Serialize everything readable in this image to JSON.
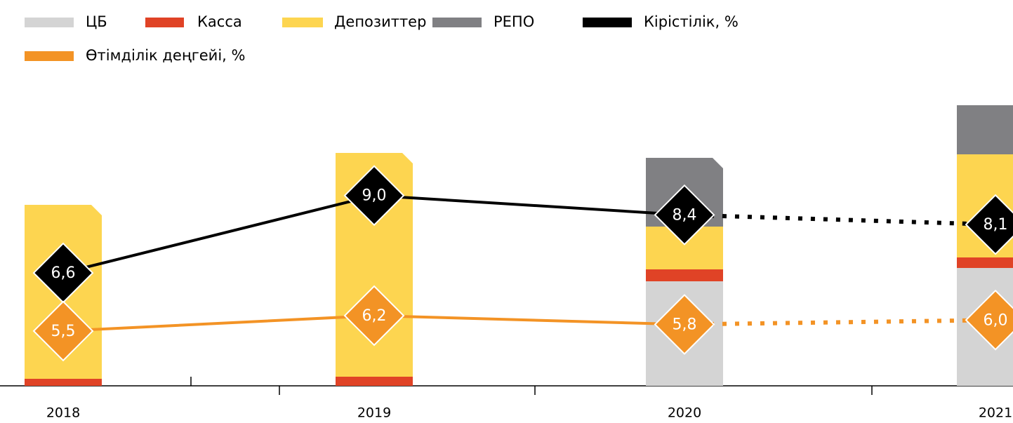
{
  "chart_data": {
    "type": "bar",
    "categories": [
      "2018",
      "2019",
      "2020",
      "2021"
    ],
    "ylim": [
      0,
      400
    ],
    "dotted_from": 2,
    "series": [
      {
        "name": "ЦБ",
        "color": "#d4d4d4",
        "values": [
          null,
          null,
          149,
          168
        ]
      },
      {
        "name": "Касса",
        "color": "#e04326",
        "values": [
          10,
          13,
          17,
          15
        ]
      },
      {
        "name": "Депозиттер",
        "color": "#fdd550",
        "values": [
          248,
          319,
          61,
          147
        ]
      },
      {
        "name": "РЕПО",
        "color": "#808083",
        "values": [
          null,
          null,
          98,
          70
        ]
      },
      {
        "name": "Кірістілік, %",
        "type": "line",
        "color": "#000000",
        "ylim": [
          3.1,
          11.8
        ],
        "values": [
          6.6,
          9.0,
          8.4,
          8.1
        ],
        "value_labels": [
          "6,6",
          "9,0",
          "8,4",
          "8,1"
        ]
      },
      {
        "name": "Өтімділік деңгейі, %",
        "type": "line",
        "color": "#f39325",
        "ylim": [
          3.0,
          15.8
        ],
        "values": [
          5.5,
          6.2,
          5.8,
          6.0
        ],
        "value_labels": [
          "5,5",
          "6,2",
          "5,8",
          "6,0"
        ]
      }
    ]
  }
}
